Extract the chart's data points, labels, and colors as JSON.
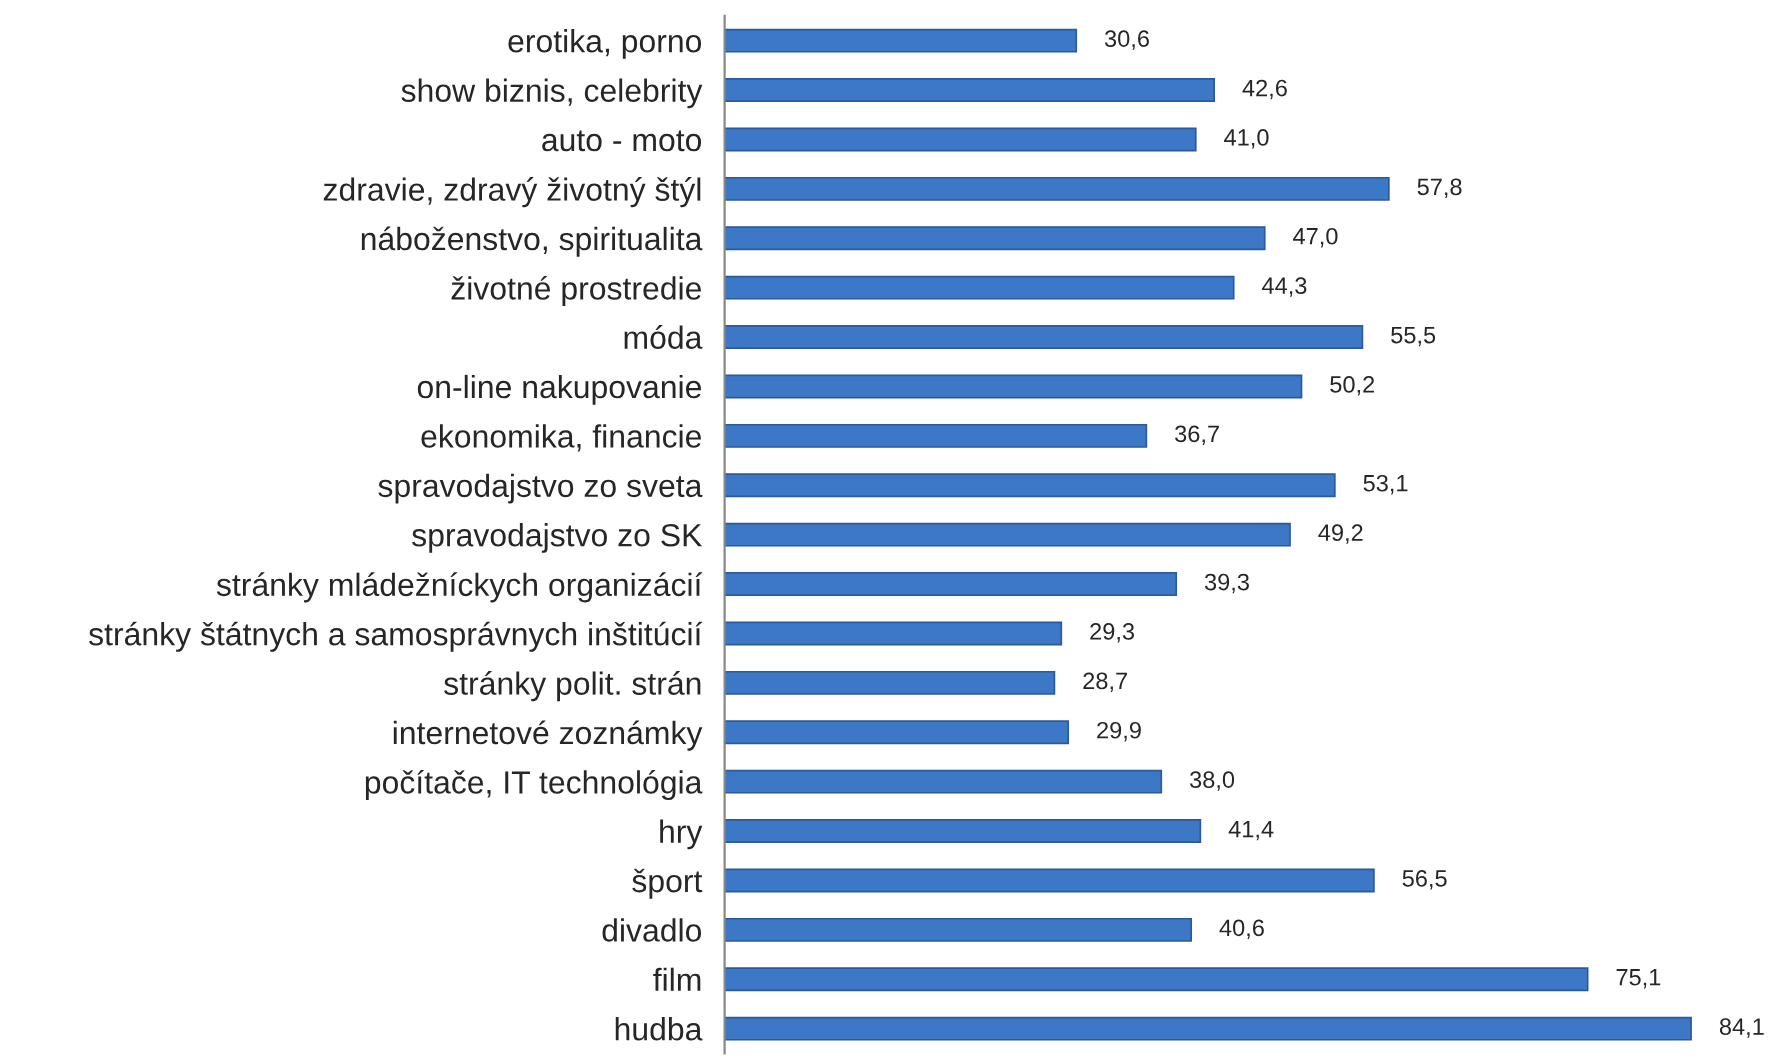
{
  "chart_data": {
    "type": "bar",
    "orientation": "horizontal",
    "categories": [
      "erotika, porno",
      "show biznis, celebrity",
      "auto - moto",
      "zdravie, zdravý životný štýl",
      "náboženstvo, spiritualita",
      "životné prostredie",
      "móda",
      "on-line nakupovanie",
      "ekonomika, financie",
      "spravodajstvo zo sveta",
      "spravodajstvo zo SK",
      "stránky mládežníckych organizácií",
      "stránky štátnych a samosprávnych inštitúcií",
      "stránky polit. strán",
      "internetové zoznámky",
      "počítače, IT technológia",
      "hry",
      "šport",
      "divadlo",
      "film",
      "hudba"
    ],
    "values": [
      30.6,
      42.6,
      41.0,
      57.8,
      47.0,
      44.3,
      55.5,
      50.2,
      36.7,
      53.1,
      49.2,
      39.3,
      29.3,
      28.7,
      29.9,
      38.0,
      41.4,
      56.5,
      40.6,
      75.1,
      84.1
    ],
    "value_labels": [
      "30,6",
      "42,6",
      "41,0",
      "57,8",
      "47,0",
      "44,3",
      "55,5",
      "50,2",
      "36,7",
      "53,1",
      "49,2",
      "39,3",
      "29,3",
      "28,7",
      "29,9",
      "38,0",
      "41,4",
      "56,5",
      "40,6",
      "75,1",
      "84,1"
    ],
    "color": "#3d78c6",
    "grid": false,
    "legend": false,
    "tick_labels": "y"
  }
}
